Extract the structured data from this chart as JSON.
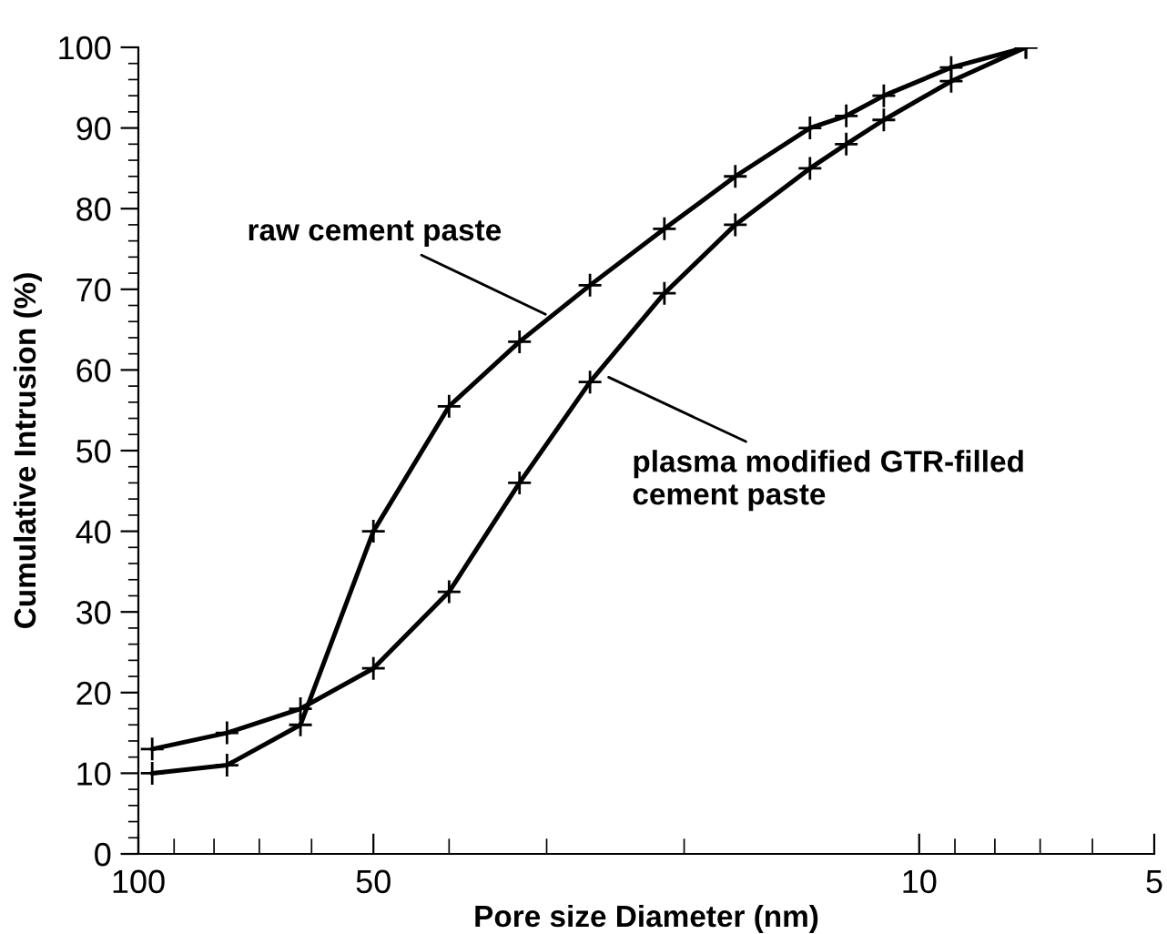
{
  "chart_data": {
    "type": "line",
    "xlabel": "Pore size Diameter (nm)",
    "ylabel": "Cumulative Intrusion (%)",
    "log": "x",
    "marker": "cross",
    "line_style": "solid",
    "grid": false,
    "xlim": [
      100,
      5
    ],
    "ylim": [
      0,
      100
    ],
    "xticks": [
      100,
      {
        "value": 90,
        "label": null
      },
      {
        "value": 80,
        "label": null
      },
      {
        "value": 70,
        "label": null
      },
      {
        "value": 60,
        "label": null
      },
      50,
      {
        "value": 40,
        "label": null
      },
      {
        "value": 30,
        "label": null
      },
      {
        "value": 20,
        "label": null
      },
      10,
      {
        "value": 9,
        "label": null
      },
      {
        "value": 8,
        "label": null
      },
      {
        "value": 7,
        "label": null
      },
      {
        "value": 6,
        "label": null
      },
      5
    ],
    "yticks": [
      0,
      {
        "value": 2,
        "label": null
      },
      {
        "value": 4,
        "label": null
      },
      {
        "value": 6,
        "label": null
      },
      {
        "value": 8,
        "label": null
      },
      10,
      {
        "value": 12,
        "label": null
      },
      {
        "value": 14,
        "label": null
      },
      {
        "value": 16,
        "label": null
      },
      {
        "value": 18,
        "label": null
      },
      20,
      {
        "value": 22,
        "label": null
      },
      {
        "value": 24,
        "label": null
      },
      {
        "value": 26,
        "label": null
      },
      {
        "value": 28,
        "label": null
      },
      30,
      {
        "value": 32,
        "label": null
      },
      {
        "value": 34,
        "label": null
      },
      {
        "value": 36,
        "label": null
      },
      {
        "value": 38,
        "label": null
      },
      40,
      {
        "value": 42,
        "label": null
      },
      {
        "value": 44,
        "label": null
      },
      {
        "value": 46,
        "label": null
      },
      {
        "value": 48,
        "label": null
      },
      50,
      {
        "value": 52,
        "label": null
      },
      {
        "value": 54,
        "label": null
      },
      {
        "value": 56,
        "label": null
      },
      {
        "value": 58,
        "label": null
      },
      60,
      {
        "value": 62,
        "label": null
      },
      {
        "value": 64,
        "label": null
      },
      {
        "value": 66,
        "label": null
      },
      {
        "value": 68,
        "label": null
      },
      70,
      {
        "value": 72,
        "label": null
      },
      {
        "value": 74,
        "label": null
      },
      {
        "value": 76,
        "label": null
      },
      {
        "value": 78,
        "label": null
      },
      80,
      {
        "value": 82,
        "label": null
      },
      {
        "value": 84,
        "label": null
      },
      {
        "value": 86,
        "label": null
      },
      {
        "value": 88,
        "label": null
      },
      90,
      {
        "value": 92,
        "label": null
      },
      {
        "value": 94,
        "label": null
      },
      {
        "value": 96,
        "label": null
      },
      {
        "value": 98,
        "label": null
      },
      100
    ],
    "x": [
      96,
      77,
      62,
      50,
      40,
      32.5,
      26.4,
      21.2,
      17.2,
      13.8,
      12.4,
      11.1,
      9.1,
      7.3
    ],
    "series": [
      {
        "color": "#000000",
        "values": [
          10,
          11,
          16,
          40,
          55.5,
          63.5,
          70.5,
          77.5,
          84,
          90,
          91.5,
          94,
          97.5,
          100
        ]
      },
      {
        "color": "#000000",
        "values": [
          13,
          15,
          18,
          23,
          32.5,
          46,
          58.5,
          69.5,
          78,
          85,
          88,
          91,
          95.8,
          100
        ]
      }
    ],
    "annotations": [
      {
        "text": "raw cement paste",
        "x": 29.5,
        "y": 66.5
      },
      {
        "text": "plasma modified GTR-filled\ncement paste",
        "x": 25.5,
        "y": 59.5
      }
    ]
  }
}
